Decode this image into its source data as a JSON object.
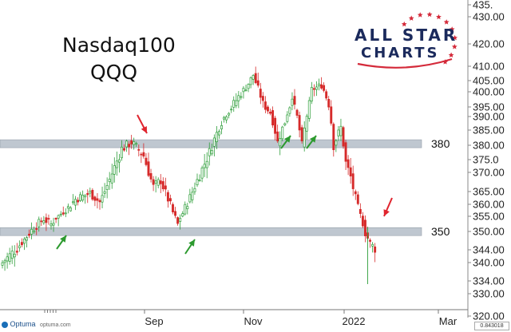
{
  "title_line1": "Nasdaq100",
  "title_line2": "QQQ",
  "logo": {
    "line1": "ALL STAR",
    "line2": "CHARTS",
    "brand_color": "#1b2a5c",
    "star_color": "#d42a3a"
  },
  "footer": {
    "software": "Optuma",
    "site": "optuma.com",
    "scale_readout": "0.843018"
  },
  "colors": {
    "up": "#2e9e3a",
    "down": "#d62a2a",
    "band": "#b9c2cc",
    "arrow_red": "#e0242e",
    "arrow_green": "#2c9a2e"
  },
  "chart_data": {
    "type": "candlestick",
    "title": "Nasdaq100 QQQ",
    "x_tick_labels": [
      "Sep",
      "Nov",
      "2022",
      "Mar"
    ],
    "y_tick_labels": [
      "435.",
      "430.00",
      "420.00",
      "410.00",
      "405.00",
      "400.00",
      "395.00",
      "390.00",
      "385.00",
      "380.00",
      "375.0",
      "370.00",
      "365.00",
      "360.00",
      "355.00",
      "350.00",
      "344.00",
      "340.00",
      "334.00",
      "330.00",
      "320.00"
    ],
    "y_range": [
      320,
      436
    ],
    "levels": [
      {
        "label": "380",
        "value": 380.5
      },
      {
        "label": "350",
        "value": 350.5
      }
    ],
    "annotations": [
      {
        "type": "red-arrow-down",
        "target": "September high at 380 level"
      },
      {
        "type": "green-arrow-up",
        "target": "July pullback near 350"
      },
      {
        "type": "green-arrow-up",
        "target": "October low near 350"
      },
      {
        "type": "green-arrow-up",
        "target": "November pullback near 380"
      },
      {
        "type": "green-arrow-up",
        "target": "December pullback near 380"
      },
      {
        "type": "red-arrow-down",
        "target": "January 2022 retest of 350"
      }
    ],
    "close_path": [
      {
        "bar": 0,
        "value": 340
      },
      {
        "bar": 6,
        "value": 344
      },
      {
        "bar": 12,
        "value": 351
      },
      {
        "bar": 17,
        "value": 355
      },
      {
        "bar": 20,
        "value": 353
      },
      {
        "bar": 24,
        "value": 358
      },
      {
        "bar": 30,
        "value": 364
      },
      {
        "bar": 36,
        "value": 366
      },
      {
        "bar": 40,
        "value": 363
      },
      {
        "bar": 45,
        "value": 372
      },
      {
        "bar": 49,
        "value": 379
      },
      {
        "bar": 53,
        "value": 381
      },
      {
        "bar": 58,
        "value": 377
      },
      {
        "bar": 62,
        "value": 368
      },
      {
        "bar": 65,
        "value": 370
      },
      {
        "bar": 69,
        "value": 362
      },
      {
        "bar": 72,
        "value": 353
      },
      {
        "bar": 75,
        "value": 361
      },
      {
        "bar": 80,
        "value": 370
      },
      {
        "bar": 85,
        "value": 378
      },
      {
        "bar": 90,
        "value": 388
      },
      {
        "bar": 95,
        "value": 396
      },
      {
        "bar": 100,
        "value": 402
      },
      {
        "bar": 103,
        "value": 407
      },
      {
        "bar": 107,
        "value": 396
      },
      {
        "bar": 110,
        "value": 392
      },
      {
        "bar": 113,
        "value": 381
      },
      {
        "bar": 116,
        "value": 388
      },
      {
        "bar": 119,
        "value": 399
      },
      {
        "bar": 121,
        "value": 390
      },
      {
        "bar": 123,
        "value": 380
      },
      {
        "bar": 127,
        "value": 401
      },
      {
        "bar": 131,
        "value": 403
      },
      {
        "bar": 134,
        "value": 396
      },
      {
        "bar": 136,
        "value": 380
      },
      {
        "bar": 139,
        "value": 386
      },
      {
        "bar": 141,
        "value": 375
      },
      {
        "bar": 143,
        "value": 371
      },
      {
        "bar": 146,
        "value": 361
      },
      {
        "bar": 149,
        "value": 350
      },
      {
        "bar": 151,
        "value": 346
      },
      {
        "bar": 153,
        "value": 344
      }
    ]
  }
}
